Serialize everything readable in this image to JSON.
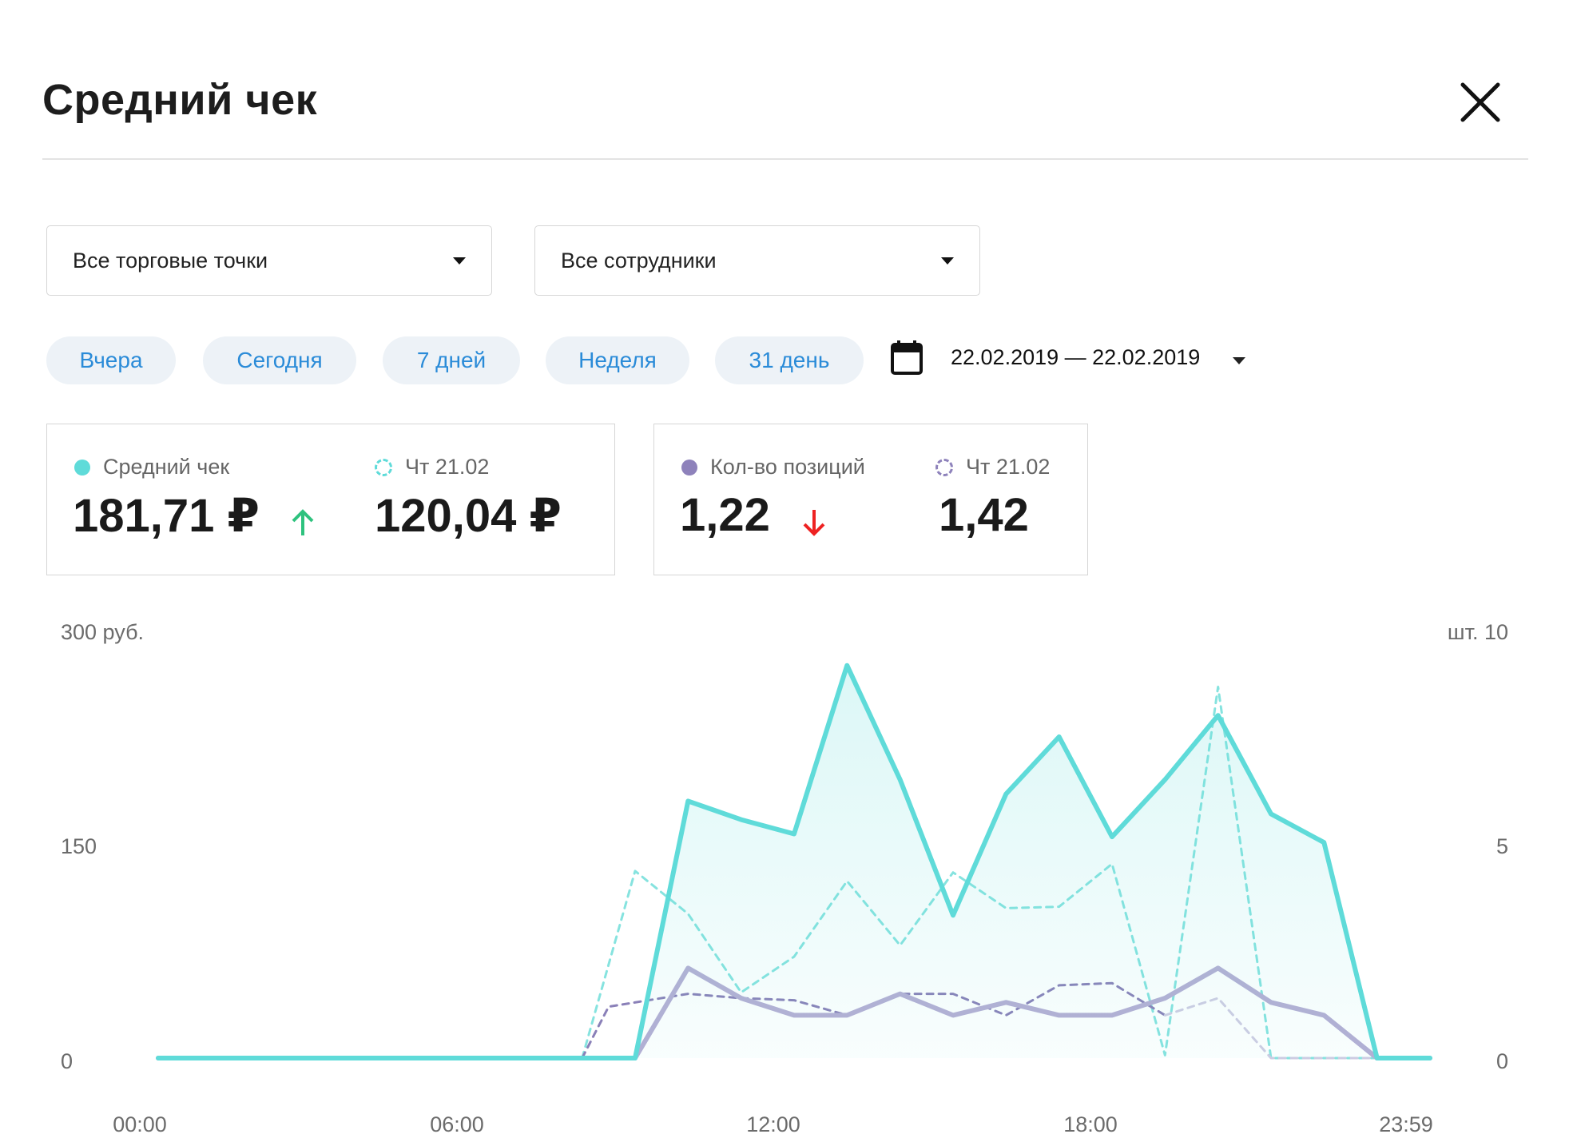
{
  "modal": {
    "title": "Средний чек"
  },
  "filters": {
    "outlet": {
      "label": "Все торговые точки"
    },
    "employee": {
      "label": "Все сотрудники"
    }
  },
  "periods": [
    {
      "label": "Вчера"
    },
    {
      "label": "Сегодня"
    },
    {
      "label": "7 дней"
    },
    {
      "label": "Неделя"
    },
    {
      "label": "31 день"
    }
  ],
  "date_range": {
    "value": "22.02.2019 — 22.02.2019"
  },
  "stats": {
    "avg_check": {
      "label": "Средний чек",
      "value": "181,71 ₽",
      "compare_label": "Чт 21.02",
      "compare_value": "120,04 ₽",
      "trend": "up",
      "color": "#5fdbd9"
    },
    "items_count": {
      "label": "Кол-во позиций",
      "value": "1,22",
      "compare_label": "Чт 21.02",
      "compare_value": "1,42",
      "trend": "down",
      "color": "#9b8fc1"
    }
  },
  "colors": {
    "trend_up": "#2ec27e",
    "trend_down": "#ee2222",
    "chip_text": "#2a8bd8"
  },
  "chart_data": {
    "type": "line",
    "x_tick_labels": [
      "00:00",
      "06:00",
      "12:00",
      "18:00",
      "23:59"
    ],
    "x_domain": [
      0,
      24
    ],
    "y_left": {
      "unit": "300 руб.",
      "tick_labels": [
        "150",
        "0"
      ],
      "range": [
        0,
        300
      ]
    },
    "y_right": {
      "unit": "шт. 10",
      "tick_labels": [
        "5",
        "0"
      ],
      "range": [
        0,
        10
      ]
    },
    "series": [
      {
        "axis": "left",
        "style": "solid-area",
        "color": "#5fdbd9",
        "points": [
          [
            0,
            0
          ],
          [
            1,
            0
          ],
          [
            2,
            0
          ],
          [
            3,
            0
          ],
          [
            4,
            0
          ],
          [
            5,
            0
          ],
          [
            6,
            0
          ],
          [
            7,
            0
          ],
          [
            8,
            0
          ],
          [
            9,
            0
          ],
          [
            10,
            180
          ],
          [
            11,
            167
          ],
          [
            12,
            157
          ],
          [
            13,
            275
          ],
          [
            14,
            195
          ],
          [
            15,
            100
          ],
          [
            16,
            185
          ],
          [
            17,
            225
          ],
          [
            18,
            155
          ],
          [
            19,
            195
          ],
          [
            20,
            240
          ],
          [
            21,
            171
          ],
          [
            22,
            151
          ],
          [
            23,
            0
          ],
          [
            24,
            0
          ]
        ]
      },
      {
        "axis": "left",
        "style": "dashed",
        "color": "#86e3df",
        "points": [
          [
            8,
            0
          ],
          [
            9,
            131
          ],
          [
            10,
            101
          ],
          [
            11,
            46
          ],
          [
            12,
            71
          ],
          [
            13,
            124
          ],
          [
            14,
            79
          ],
          [
            15,
            130
          ],
          [
            16,
            105
          ],
          [
            17,
            106
          ],
          [
            18,
            136
          ],
          [
            19,
            2
          ],
          [
            20,
            260
          ],
          [
            21,
            0
          ],
          [
            22,
            0
          ],
          [
            23,
            0
          ]
        ]
      },
      {
        "axis": "right",
        "style": "solid",
        "color": "#b5aed4",
        "points": [
          [
            0,
            0
          ],
          [
            1,
            0
          ],
          [
            2,
            0
          ],
          [
            3,
            0
          ],
          [
            4,
            0
          ],
          [
            5,
            0
          ],
          [
            6,
            0
          ],
          [
            7,
            0
          ],
          [
            8,
            0
          ],
          [
            9,
            0
          ],
          [
            10,
            2.1
          ],
          [
            11,
            1.4
          ],
          [
            12,
            1.0
          ],
          [
            13,
            1.0
          ],
          [
            14,
            1.5
          ],
          [
            15,
            1.0
          ],
          [
            16,
            1.3
          ],
          [
            17,
            1.0
          ],
          [
            18,
            1.0
          ],
          [
            19,
            1.4
          ],
          [
            20,
            2.1
          ],
          [
            21,
            1.3
          ],
          [
            22,
            1.0
          ],
          [
            23,
            0
          ],
          [
            24,
            0
          ]
        ]
      },
      {
        "axis": "right",
        "style": "dashed",
        "color": "#8a80b8",
        "points": [
          [
            8,
            0
          ],
          [
            8.5,
            1.2
          ],
          [
            10,
            1.5
          ],
          [
            11,
            1.4
          ],
          [
            12,
            1.35
          ],
          [
            13,
            1.0
          ],
          [
            14,
            1.5
          ],
          [
            15,
            1.5
          ],
          [
            16,
            1.0
          ],
          [
            17,
            1.7
          ],
          [
            18,
            1.75
          ],
          [
            19,
            1.0
          ]
        ]
      },
      {
        "axis": "right",
        "style": "dashed",
        "color": "#cfcce3",
        "points": [
          [
            19,
            1.0
          ],
          [
            20,
            1.4
          ],
          [
            21,
            0
          ],
          [
            22,
            0
          ],
          [
            23,
            0
          ]
        ]
      }
    ]
  }
}
